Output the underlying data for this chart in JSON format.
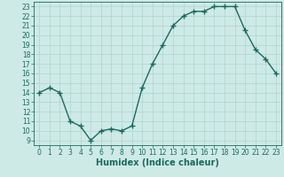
{
  "x": [
    0,
    1,
    2,
    3,
    4,
    5,
    6,
    7,
    8,
    9,
    10,
    11,
    12,
    13,
    14,
    15,
    16,
    17,
    18,
    19,
    20,
    21,
    22,
    23
  ],
  "y": [
    14,
    14.5,
    14,
    11,
    10.5,
    9,
    10,
    10.2,
    10,
    10.5,
    14.5,
    17,
    19,
    21,
    22,
    22.5,
    22.5,
    23,
    23,
    23,
    20.5,
    18.5,
    17.5,
    16
  ],
  "line_color": "#1a6b5e",
  "marker_color": "#1a6b5e",
  "bg_color": "#ceeae6",
  "grid_color": "#aed4cf",
  "xlabel": "Humidex (Indice chaleur)",
  "xlim": [
    -0.5,
    23.5
  ],
  "ylim": [
    8.5,
    23.5
  ],
  "yticks": [
    9,
    10,
    11,
    12,
    13,
    14,
    15,
    16,
    17,
    18,
    19,
    20,
    21,
    22,
    23
  ],
  "xticks": [
    0,
    1,
    2,
    3,
    4,
    5,
    6,
    7,
    8,
    9,
    10,
    11,
    12,
    13,
    14,
    15,
    16,
    17,
    18,
    19,
    20,
    21,
    22,
    23
  ],
  "tick_label_size": 5.5,
  "xlabel_size": 7,
  "marker_size": 2.5,
  "linewidth": 1.0
}
